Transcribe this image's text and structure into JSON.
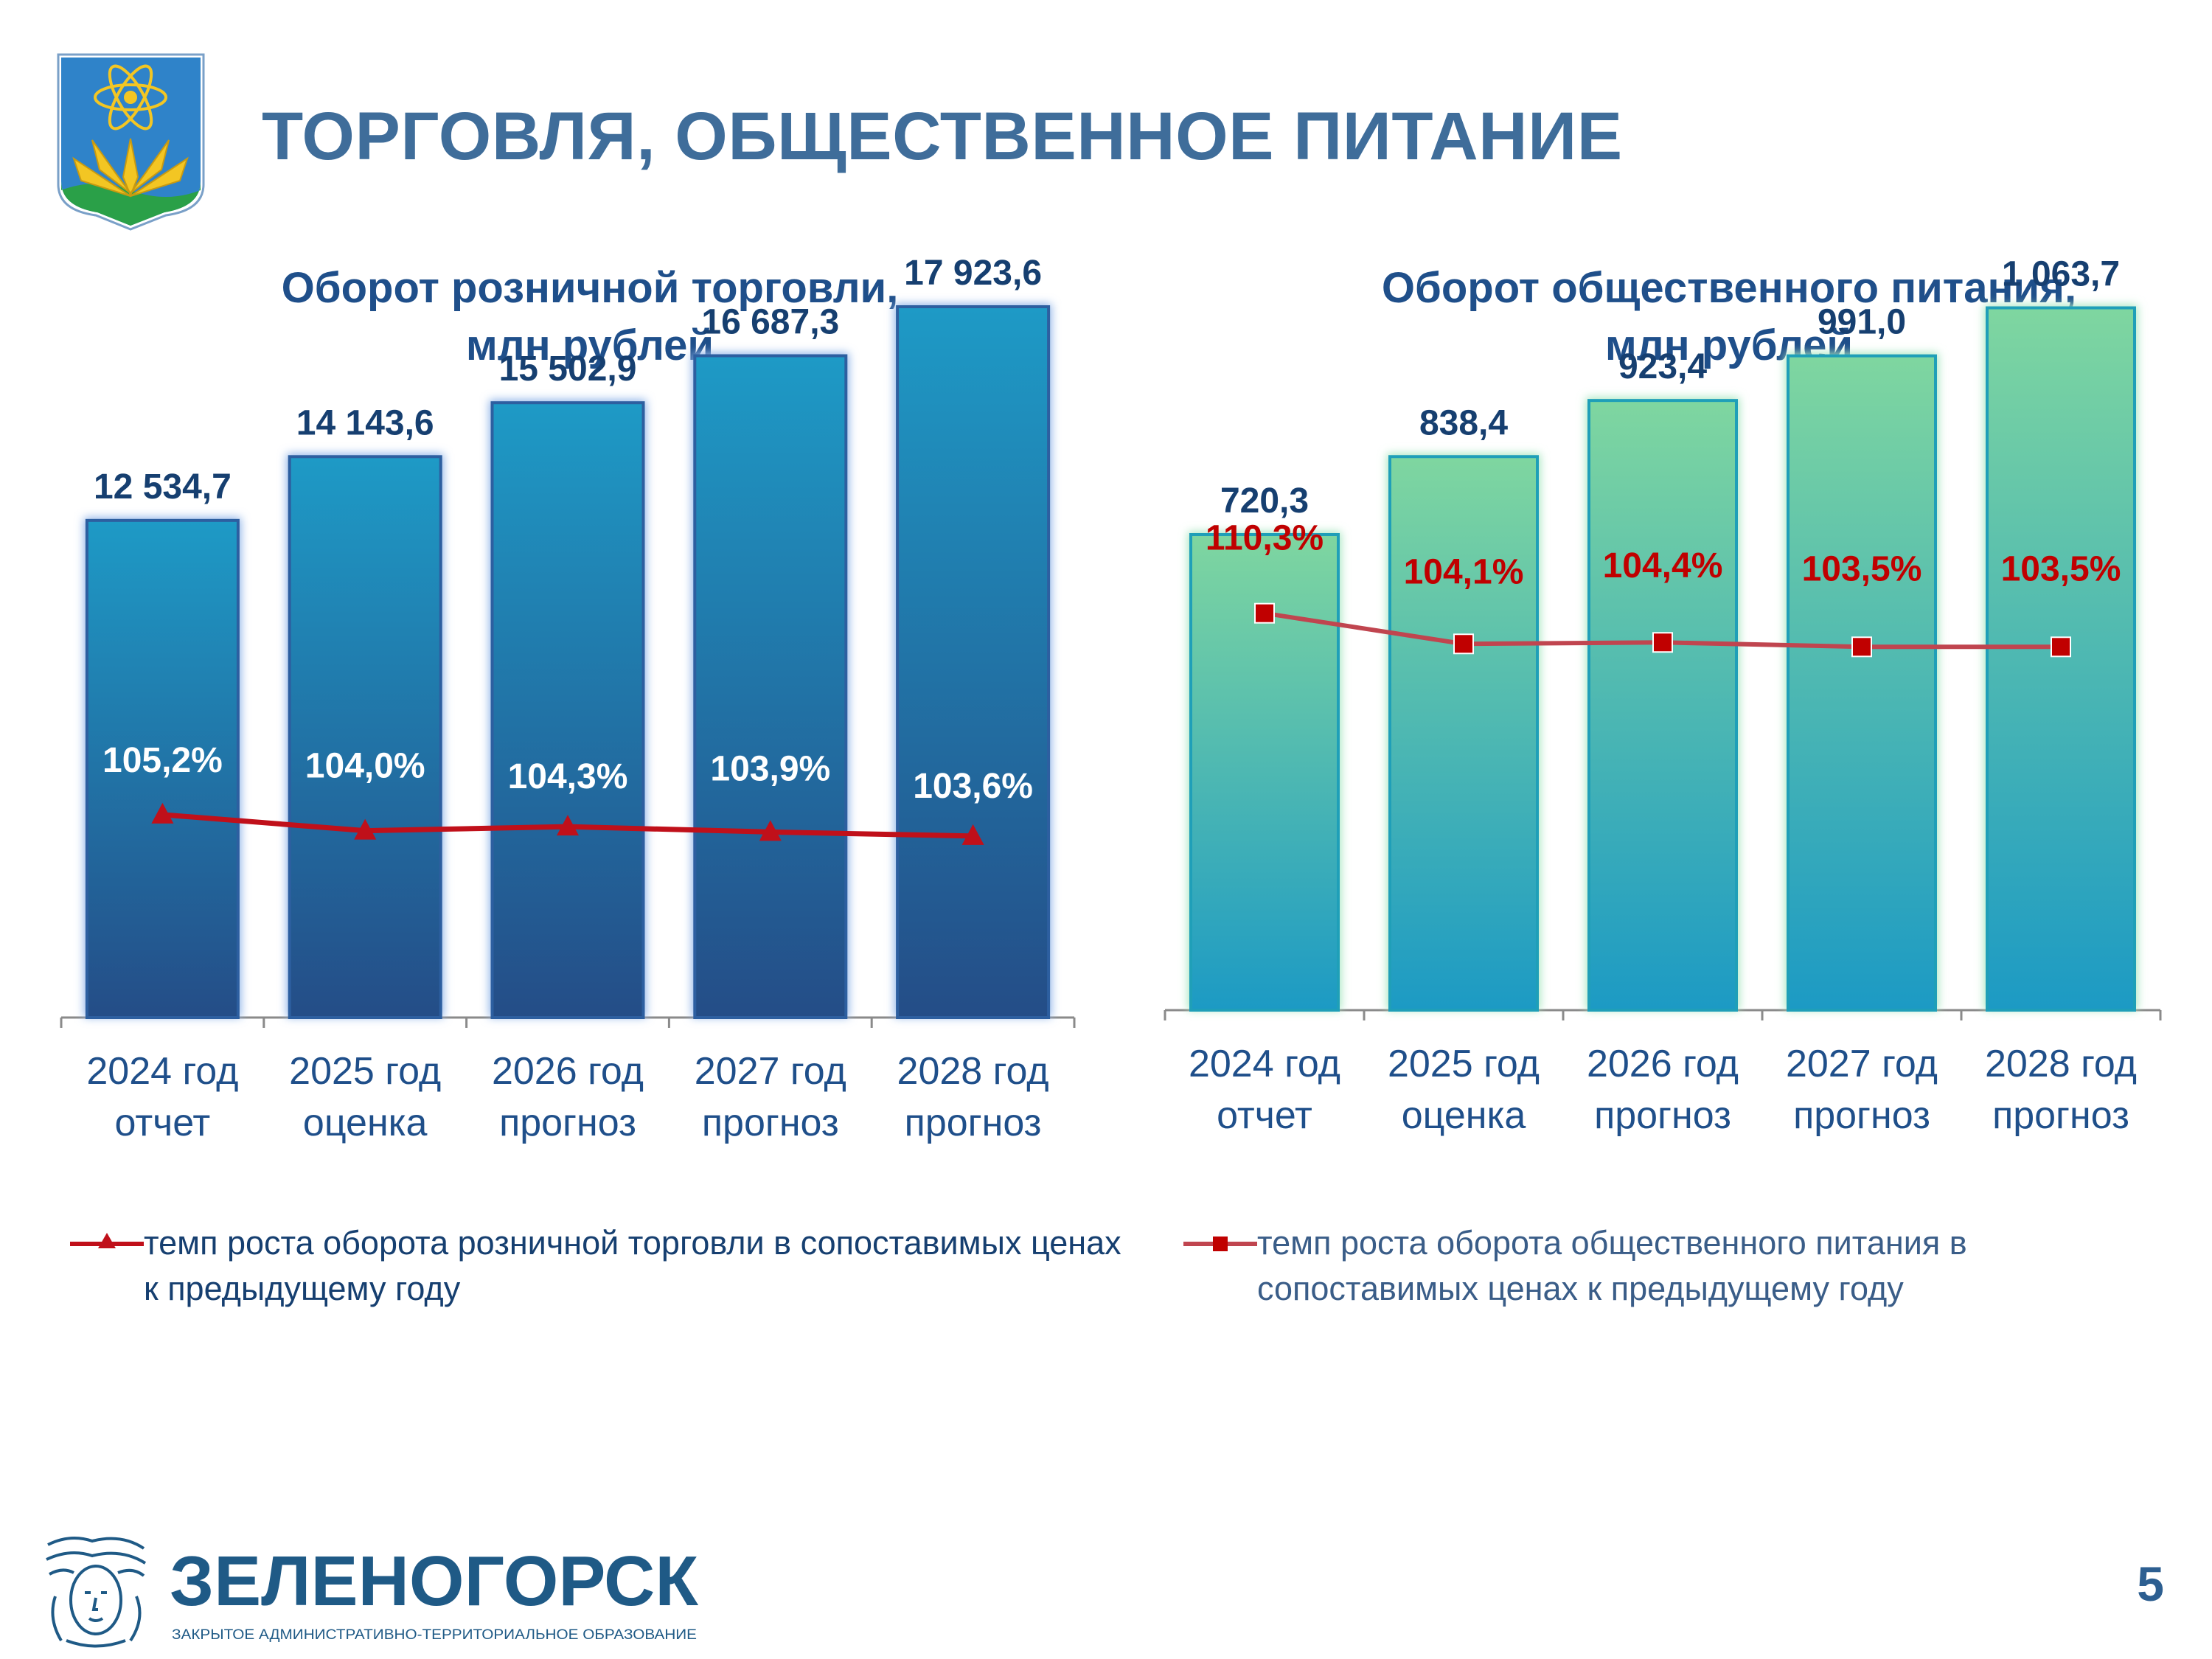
{
  "slide": {
    "title": "ТОРГОВЛЯ, ОБЩЕСТВЕННОЕ ПИТАНИЕ",
    "page_number": "5",
    "logo": {
      "name": "ЗЕЛЕНОГОРСК",
      "subtitle": "ЗАКРЫТОЕ АДМИНИСТРАТИВНО-ТЕРРИТОРИАЛЬНОЕ ОБРАЗОВАНИЕ"
    },
    "colors": {
      "title": "#3f6d9a",
      "retail_bar_top": "#1e9ac6",
      "retail_bar_bottom": "#244d87",
      "food_bar_top": "#7fd6a0",
      "food_bar_bottom": "#1c9ac4",
      "line_red": "#c0101a",
      "food_line": "#c0454f"
    }
  },
  "chart_data": [
    {
      "type": "bar",
      "title": "Оборот розничной торговли,\nмлн рублей",
      "title_lines": [
        "Оборот розничной торговли,",
        "млн рублей"
      ],
      "categories": [
        "2024 год\nотчет",
        "2025 год\nоценка",
        "2026 год\nпрогноз",
        "2027 год\nпрогноз",
        "2028 год\nпрогноз"
      ],
      "category_lines": [
        [
          "2024 год",
          "отчет"
        ],
        [
          "2025 год",
          "оценка"
        ],
        [
          "2026 год",
          "прогноз"
        ],
        [
          "2027 год",
          "прогноз"
        ],
        [
          "2028 год",
          "прогноз"
        ]
      ],
      "values": [
        12534.7,
        14143.6,
        15502.9,
        16687.3,
        17923.6
      ],
      "value_labels": [
        "12 534,7",
        "14 143,6",
        "15 502,9",
        "16 687,3",
        "17 923,6"
      ],
      "ylim": [
        0,
        18500
      ],
      "line_series": {
        "name": "темп роста оборота розничной торговли в сопоставимых ценах к предыдущему году",
        "marker": "triangle",
        "values": [
          105.2,
          104.0,
          104.3,
          103.9,
          103.6
        ],
        "labels": [
          "105,2%",
          "104,0%",
          "104,3%",
          "103,9%",
          "103,6%"
        ],
        "ylim": [
          90,
          140
        ]
      },
      "legend": "bottom"
    },
    {
      "type": "bar",
      "title": "Оборот общественного питания,\nмлн рублей",
      "title_lines": [
        "Оборот общественного питания,",
        "млн рублей"
      ],
      "categories": [
        "2024 год\nотчет",
        "2025 год\nоценка",
        "2026 год\nпрогноз",
        "2027 год\nпрогноз",
        "2028 год\nпрогноз"
      ],
      "category_lines": [
        [
          "2024 год",
          "отчет"
        ],
        [
          "2025 год",
          "оценка"
        ],
        [
          "2026 год",
          "прогноз"
        ],
        [
          "2027 год",
          "прогноз"
        ],
        [
          "2028 год",
          "прогноз"
        ]
      ],
      "values": [
        720.3,
        838.4,
        923.4,
        991.0,
        1063.7
      ],
      "value_labels": [
        "720,3",
        "838,4",
        "923,4",
        "991,0",
        "1 063,7"
      ],
      "ylim": [
        0,
        1100
      ],
      "line_series": {
        "name": "темп роста оборота общественного питания в сопоставимых ценах к предыдущему году",
        "marker": "square",
        "values": [
          110.3,
          104.1,
          104.4,
          103.5,
          103.5
        ],
        "labels": [
          "110,3%",
          "104,1%",
          "104,4%",
          "103,5%",
          "103,5%"
        ],
        "ylim": [
          30,
          165
        ]
      },
      "legend": "bottom"
    }
  ]
}
